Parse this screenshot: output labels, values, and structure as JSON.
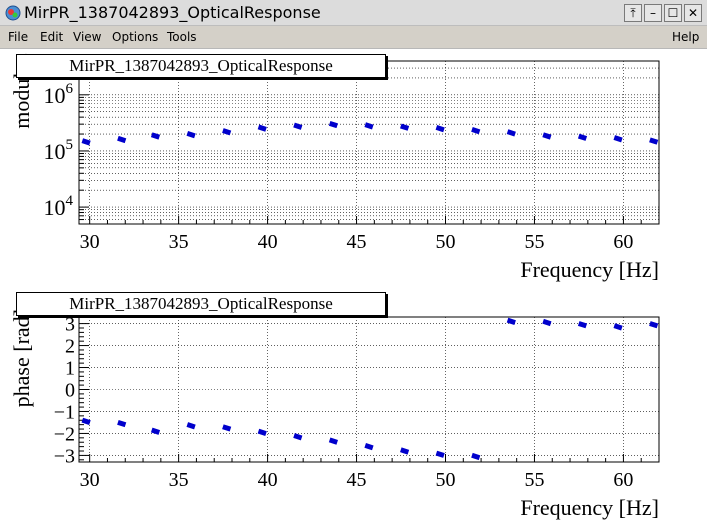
{
  "window": {
    "title": "MirPR_1387042893_OpticalResponse",
    "buttons": {
      "pin": "⤒",
      "minimize": "–",
      "maximize": "☐",
      "close": "✕"
    }
  },
  "menu": {
    "file": "File",
    "edit": "Edit",
    "view": "View",
    "options": "Options",
    "tools": "Tools",
    "help": "Help"
  },
  "colors": {
    "marker": "#0000cc",
    "grid": "#000000"
  },
  "chart_data": [
    {
      "type": "scatter",
      "title": "MirPR_1387042893_OpticalResponse",
      "xlabel": "Frequency [Hz]",
      "ylabel": "modulus",
      "yscale": "log",
      "xlim": [
        29.4,
        62.0
      ],
      "ylim": [
        5000,
        4000000
      ],
      "xticks": [
        30,
        35,
        40,
        45,
        50,
        55,
        60
      ],
      "ytick_labels": [
        "10^4",
        "10^5",
        "10^6"
      ],
      "grid": true,
      "series": [
        {
          "x": [
            29.8,
            31.8,
            33.7,
            35.7,
            37.7,
            39.7,
            41.7,
            43.7,
            45.7,
            47.7,
            49.7,
            51.7,
            53.7,
            55.7,
            57.7,
            59.7,
            61.7
          ],
          "y": [
            145000,
            160000,
            185000,
            195000,
            220000,
            255000,
            275000,
            295000,
            280000,
            265000,
            250000,
            230000,
            210000,
            185000,
            175000,
            165000,
            150000
          ]
        }
      ]
    },
    {
      "type": "scatter",
      "title": "MirPR_1387042893_OpticalResponse",
      "xlabel": "Frequency [Hz]",
      "ylabel": "phase [rad]",
      "xlim": [
        29.4,
        62.0
      ],
      "ylim": [
        -3.3,
        3.3
      ],
      "xticks": [
        30,
        35,
        40,
        45,
        50,
        55,
        60
      ],
      "yticks": [
        -3,
        -2,
        -1,
        0,
        1,
        2,
        3
      ],
      "grid": true,
      "series": [
        {
          "x": [
            29.8,
            31.8,
            33.7,
            35.7,
            37.7,
            39.7,
            41.7,
            43.7,
            45.7,
            47.7,
            49.7,
            51.7,
            53.7,
            55.7,
            57.7,
            59.7,
            61.7
          ],
          "y": [
            -1.45,
            -1.55,
            -1.9,
            -1.65,
            -1.75,
            -1.95,
            -2.15,
            -2.35,
            -2.6,
            -2.8,
            -2.95,
            -3.05,
            3.1,
            3.05,
            2.95,
            2.85,
            2.95
          ]
        }
      ]
    }
  ]
}
